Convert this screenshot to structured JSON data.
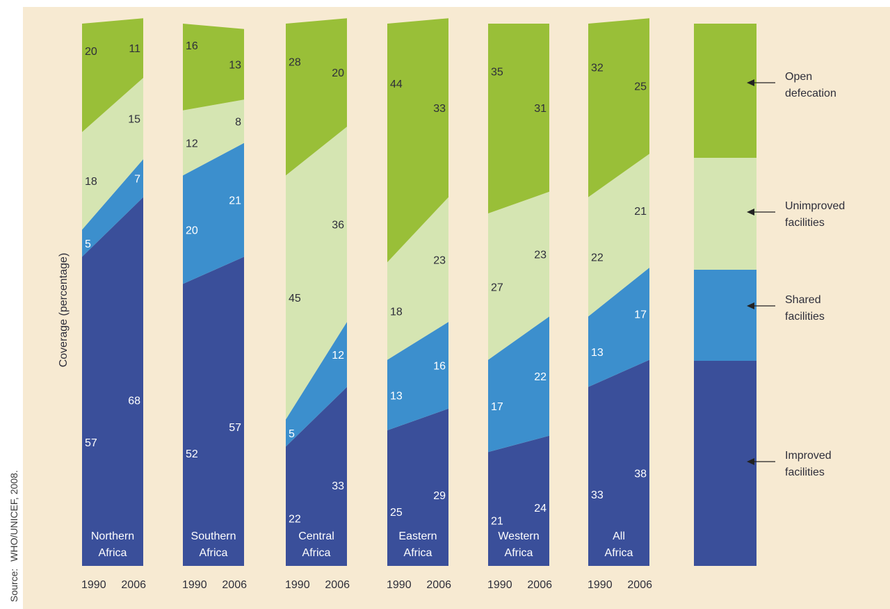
{
  "source": {
    "label": "Source:",
    "text": "WHO/UNICEF, 2008."
  },
  "colors": {
    "background": "#f7ead2",
    "improved": "#3a4f9a",
    "shared": "#3c8fcd",
    "unimproved": "#d5e5b2",
    "open_defecation": "#99bf38",
    "label_text": "#2e2e3a",
    "label_text_on_dark": "#ffffff"
  },
  "chart_data": {
    "type": "area",
    "ylabel": "Coverage (percentage)",
    "ylim": [
      0,
      100
    ],
    "grid": false,
    "legend_position": "right",
    "x_labels": [
      "1990",
      "2006"
    ],
    "categories": [
      {
        "name": "Northern\nAfrica",
        "improved": [
          57,
          68
        ],
        "shared": [
          5,
          7
        ],
        "unimproved": [
          18,
          15
        ],
        "open_defecation": [
          20,
          11
        ]
      },
      {
        "name": "Southern\nAfrica",
        "improved": [
          52,
          57
        ],
        "shared": [
          20,
          21
        ],
        "unimproved": [
          12,
          8
        ],
        "open_defecation": [
          16,
          13
        ]
      },
      {
        "name": "Central\nAfrica",
        "improved": [
          22,
          33
        ],
        "shared": [
          5,
          12
        ],
        "unimproved": [
          45,
          36
        ],
        "open_defecation": [
          28,
          20
        ]
      },
      {
        "name": "Eastern\nAfrica",
        "improved": [
          25,
          29
        ],
        "shared": [
          13,
          16
        ],
        "unimproved": [
          18,
          23
        ],
        "open_defecation": [
          44,
          33
        ]
      },
      {
        "name": "Western\nAfrica",
        "improved": [
          21,
          24
        ],
        "shared": [
          17,
          22
        ],
        "unimproved": [
          27,
          23
        ],
        "open_defecation": [
          35,
          31
        ]
      },
      {
        "name": "All\nAfrica",
        "improved": [
          33,
          38
        ],
        "shared": [
          13,
          17
        ],
        "unimproved": [
          22,
          21
        ],
        "open_defecation": [
          32,
          25
        ]
      }
    ],
    "series": [
      {
        "key": "improved",
        "name": "Improved\nfacilities"
      },
      {
        "key": "shared",
        "name": "Shared\nfacilities"
      },
      {
        "key": "unimproved",
        "name": "Unimproved\nfacilities"
      },
      {
        "key": "open_defecation",
        "name": "Open\ndefecation"
      }
    ]
  }
}
